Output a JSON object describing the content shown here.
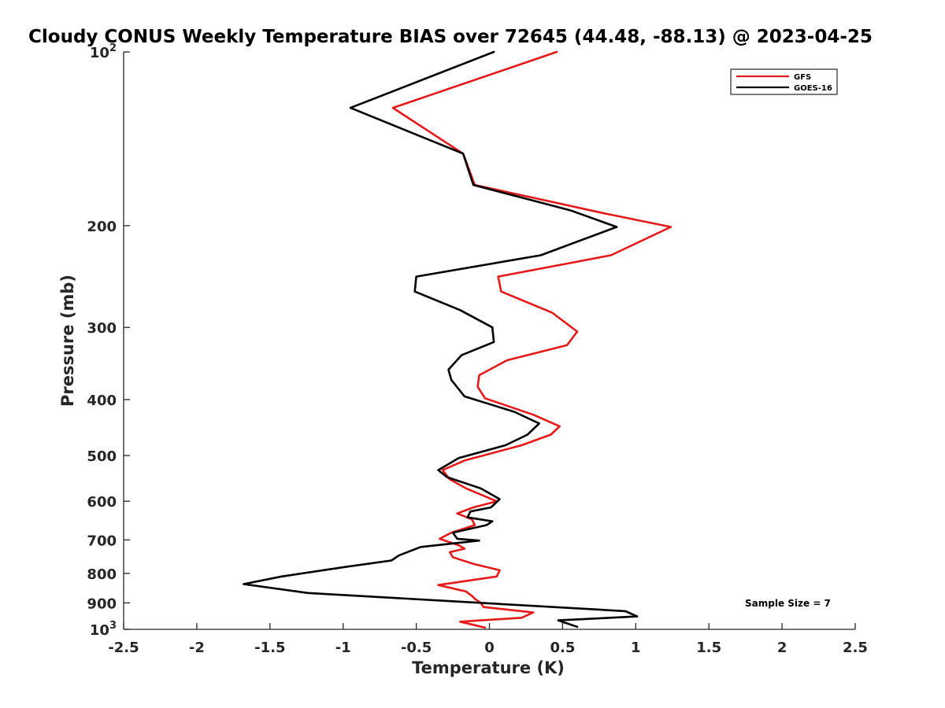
{
  "chart_data": {
    "type": "line",
    "title": "Cloudy CONUS Weekly Temperature BIAS over 72645 (44.48, -88.13) @ 2023-04-25",
    "xlabel": "Temperature (K)",
    "ylabel": "Pressure (mb)",
    "xlim": [
      -2.5,
      2.5
    ],
    "ylim": [
      100,
      1000
    ],
    "y_scale": "log",
    "y_reversed": true,
    "grid": false,
    "legend_position": "top-right",
    "x_ticks": [
      -2.5,
      -2,
      -1.5,
      -1,
      -0.5,
      0,
      0.5,
      1,
      1.5,
      2,
      2.5
    ],
    "x_tick_labels": [
      "-2.5",
      "-2",
      "-1.5",
      "-1",
      "-0.5",
      "0",
      "0.5",
      "1",
      "1.5",
      "2",
      "2.5"
    ],
    "y_ticks": [
      100,
      200,
      300,
      400,
      500,
      600,
      700,
      800,
      900,
      1000
    ],
    "y_tick_labels": [
      {
        "base": "10",
        "exp": "2"
      },
      {
        "base": "200",
        "exp": ""
      },
      {
        "base": "300",
        "exp": ""
      },
      {
        "base": "400",
        "exp": ""
      },
      {
        "base": "500",
        "exp": ""
      },
      {
        "base": "600",
        "exp": ""
      },
      {
        "base": "700",
        "exp": ""
      },
      {
        "base": "800",
        "exp": ""
      },
      {
        "base": "900",
        "exp": ""
      },
      {
        "base": "10",
        "exp": "3"
      }
    ],
    "annotation": "Sample Size = 7",
    "series": [
      {
        "name": "GFS",
        "color": "#e41a1a",
        "points": [
          [
            0.46,
            100
          ],
          [
            -0.66,
            125
          ],
          [
            -0.18,
            150
          ],
          [
            -0.1,
            170
          ],
          [
            0.77,
            190
          ],
          [
            1.24,
            201
          ],
          [
            0.83,
            225
          ],
          [
            0.06,
            245
          ],
          [
            0.08,
            260
          ],
          [
            0.43,
            283
          ],
          [
            0.6,
            305
          ],
          [
            0.53,
            322
          ],
          [
            0.12,
            342
          ],
          [
            -0.07,
            363
          ],
          [
            -0.08,
            380
          ],
          [
            -0.03,
            398
          ],
          [
            0.3,
            425
          ],
          [
            0.48,
            445
          ],
          [
            0.42,
            460
          ],
          [
            0.22,
            480
          ],
          [
            -0.17,
            510
          ],
          [
            -0.32,
            530
          ],
          [
            -0.27,
            550
          ],
          [
            -0.16,
            570
          ],
          [
            0.05,
            600
          ],
          [
            -0.11,
            615
          ],
          [
            -0.22,
            630
          ],
          [
            -0.12,
            645
          ],
          [
            -0.1,
            660
          ],
          [
            -0.26,
            680
          ],
          [
            -0.34,
            697
          ],
          [
            -0.21,
            715
          ],
          [
            -0.17,
            725
          ],
          [
            -0.27,
            735
          ],
          [
            -0.25,
            750
          ],
          [
            -0.11,
            770
          ],
          [
            0.07,
            790
          ],
          [
            0.05,
            810
          ],
          [
            -0.35,
            838
          ],
          [
            -0.16,
            860
          ],
          [
            -0.12,
            875
          ],
          [
            -0.1,
            885
          ],
          [
            -0.06,
            900
          ],
          [
            -0.04,
            915
          ],
          [
            0.3,
            935
          ],
          [
            0.22,
            955
          ],
          [
            -0.2,
            970
          ],
          [
            -0.03,
            993
          ]
        ]
      },
      {
        "name": "GOES-16",
        "color": "#000000",
        "points": [
          [
            0.03,
            100
          ],
          [
            -0.95,
            125
          ],
          [
            -0.18,
            150
          ],
          [
            -0.11,
            170
          ],
          [
            0.55,
            188
          ],
          [
            0.87,
            201
          ],
          [
            0.35,
            225
          ],
          [
            -0.5,
            245
          ],
          [
            -0.51,
            260
          ],
          [
            -0.2,
            280
          ],
          [
            0.02,
            300
          ],
          [
            0.03,
            318
          ],
          [
            -0.19,
            335
          ],
          [
            -0.28,
            355
          ],
          [
            -0.26,
            370
          ],
          [
            -0.17,
            395
          ],
          [
            0.17,
            420
          ],
          [
            0.34,
            440
          ],
          [
            0.26,
            460
          ],
          [
            0.11,
            480
          ],
          [
            -0.21,
            505
          ],
          [
            -0.35,
            530
          ],
          [
            -0.29,
            545
          ],
          [
            -0.06,
            570
          ],
          [
            0.07,
            595
          ],
          [
            0.01,
            615
          ],
          [
            -0.13,
            625
          ],
          [
            -0.15,
            640
          ],
          [
            0.02,
            650
          ],
          [
            -0.02,
            660
          ],
          [
            -0.25,
            680
          ],
          [
            -0.22,
            697
          ],
          [
            -0.07,
            702
          ],
          [
            -0.47,
            720
          ],
          [
            -0.62,
            745
          ],
          [
            -0.67,
            760
          ],
          [
            -0.99,
            780
          ],
          [
            -1.42,
            810
          ],
          [
            -1.68,
            835
          ],
          [
            -1.24,
            865
          ],
          [
            0.93,
            930
          ],
          [
            1.01,
            950
          ],
          [
            0.47,
            965
          ],
          [
            0.6,
            990
          ]
        ]
      }
    ]
  }
}
